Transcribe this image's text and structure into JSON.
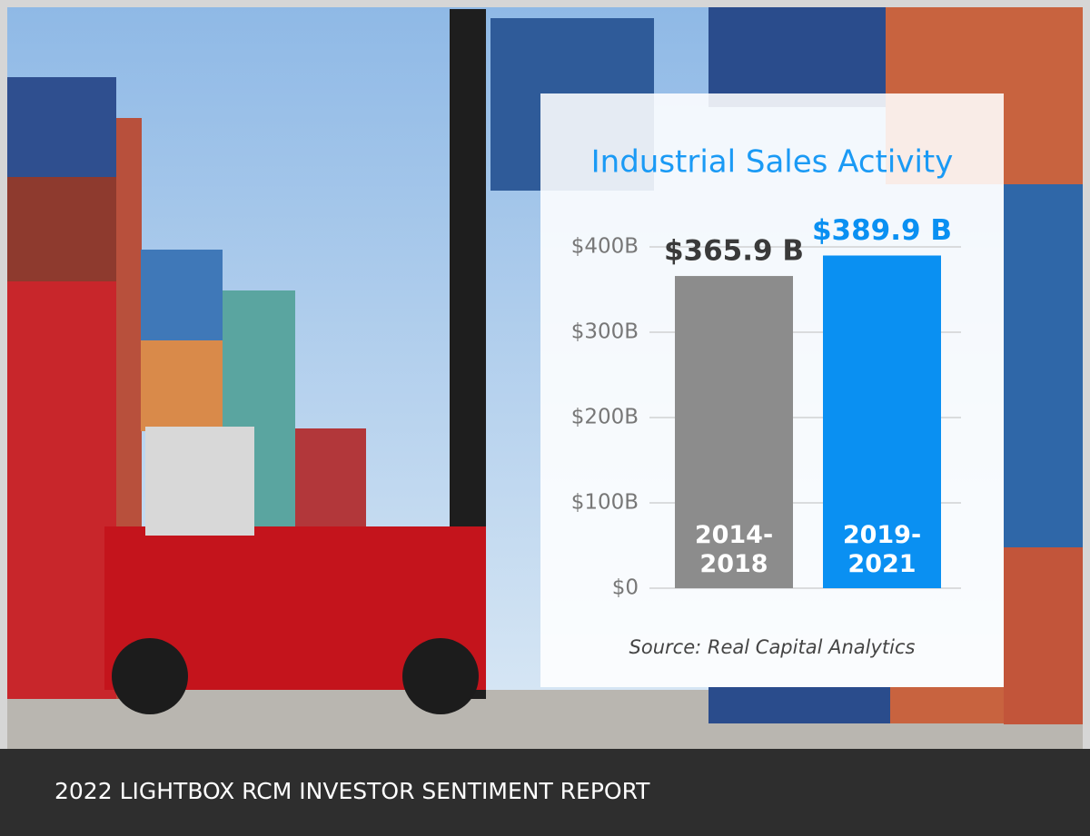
{
  "chart_data": {
    "type": "bar",
    "title": "Industrial Sales Activity",
    "categories": [
      "2014-2018",
      "2019-2021"
    ],
    "values": [
      365.9,
      389.9
    ],
    "value_labels": [
      "$365.9 B",
      "$389.9 B"
    ],
    "colors": [
      "#8c8c8c",
      "#0a90f2"
    ],
    "value_label_colors": [
      "#3a3a3a",
      "#0a90f2"
    ],
    "ylim": [
      0,
      400
    ],
    "yticks": [
      {
        "value": 0,
        "label": "$0"
      },
      {
        "value": 100,
        "label": "$100B"
      },
      {
        "value": 200,
        "label": "$200B"
      },
      {
        "value": 300,
        "label": "$300B"
      },
      {
        "value": 400,
        "label": "$400B"
      }
    ],
    "grid": true,
    "source": "Source: Real Capital Analytics"
  },
  "footer": {
    "title": "2022 LIGHTBOX RCM INVESTOR SENTIMENT REPORT"
  }
}
